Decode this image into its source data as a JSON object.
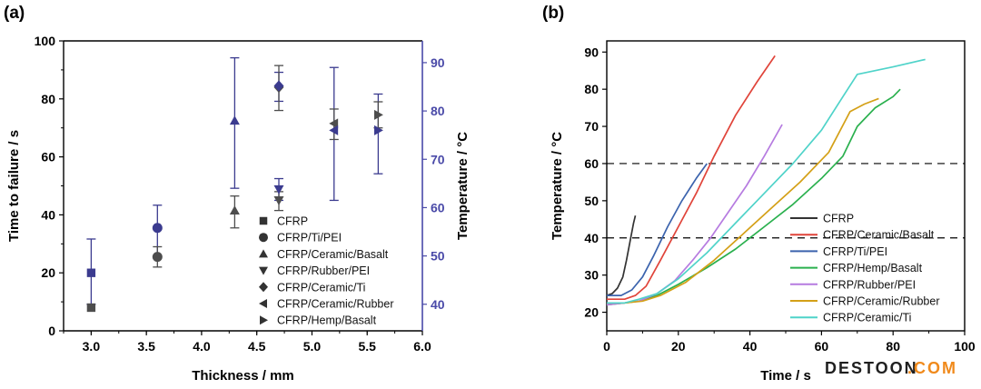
{
  "chart_data": [
    {
      "panel": "(a)",
      "type": "scatter",
      "xlabel": "Thickness / mm",
      "ylabel": "Time to failure / s",
      "y2label": "Temperature / °C",
      "xlim": [
        2.75,
        6.0
      ],
      "ylim": [
        0,
        100
      ],
      "y2lim": [
        34.5,
        94.5
      ],
      "xticks": [
        "3.0",
        "3.5",
        "4.0",
        "4.5",
        "5.0",
        "5.5",
        "6.0"
      ],
      "yticks": [
        "0",
        "20",
        "40",
        "60",
        "80",
        "100"
      ],
      "y2ticks": [
        "40",
        "50",
        "60",
        "70",
        "80",
        "90"
      ],
      "colors": {
        "time": "#4d4d4d",
        "temperature": "#3b3b8f",
        "y2axis": "#4a4aa8"
      },
      "legend_position": "bottom-right",
      "series": [
        {
          "name": "CFRP",
          "marker": "square",
          "x": 3.0,
          "time": 8,
          "time_err": null,
          "temp": 46.5,
          "temp_err": [
            40,
            53.5
          ]
        },
        {
          "name": "CFRP/Ti/PEI",
          "marker": "circle",
          "x": 3.6,
          "time": 25.5,
          "time_err": [
            22,
            29
          ],
          "temp": 55.8,
          "temp_err": [
            49.5,
            60.5
          ]
        },
        {
          "name": "CFRP/Ceramic/Basalt",
          "marker": "triangle-up",
          "x": 4.3,
          "time": 41.5,
          "time_err": [
            35.5,
            46.5
          ],
          "temp": 78,
          "temp_err": [
            64,
            91
          ]
        },
        {
          "name": "CFRP/Rubber/PEI",
          "marker": "triangle-down",
          "x": 4.7,
          "time": 45,
          "time_err": [
            41.5,
            48
          ],
          "temp": 63.8,
          "temp_err": [
            61.5,
            66
          ]
        },
        {
          "name": "CFRP/Ceramic/Ti",
          "marker": "diamond",
          "x": 4.7,
          "time": 84,
          "time_err": [
            76,
            91.5
          ],
          "temp": 85.2,
          "temp_err": [
            82,
            88
          ]
        },
        {
          "name": "CFRP/Ceramic/Rubber",
          "marker": "triangle-left",
          "x": 5.2,
          "time": 71.5,
          "time_err": [
            66,
            76.5
          ],
          "temp": 76,
          "temp_err": [
            61.5,
            89
          ]
        },
        {
          "name": "CFRP/Hemp/Basalt",
          "marker": "triangle-right",
          "x": 5.6,
          "time": 74.5,
          "time_err": [
            70,
            79
          ],
          "temp": 76,
          "temp_err": [
            67,
            83.5
          ]
        }
      ]
    },
    {
      "panel": "(b)",
      "type": "line",
      "xlabel": "Time / s",
      "ylabel": "Temperature / °C",
      "xlim": [
        0,
        100
      ],
      "ylim": [
        15,
        93
      ],
      "xticks": [
        "0",
        "20",
        "40",
        "60",
        "80",
        "100"
      ],
      "yticks": [
        "20",
        "30",
        "40",
        "50",
        "60",
        "70",
        "80",
        "90"
      ],
      "hlines": [
        40,
        60
      ],
      "legend_position": "lower-right",
      "series": [
        {
          "name": "CFRP",
          "color": "#333333",
          "x": [
            0,
            1.5,
            3,
            4.5,
            5.5,
            6.5,
            7.5,
            8
          ],
          "y": [
            24.5,
            25,
            26.5,
            29.5,
            34,
            39,
            44,
            46
          ]
        },
        {
          "name": "CFRP/Ceramic/Basalt",
          "color": "#e0443a",
          "x": [
            0,
            5,
            8,
            11,
            15,
            20,
            25,
            30,
            36,
            42,
            47
          ],
          "y": [
            23.5,
            23.5,
            24.5,
            27,
            34,
            43,
            52,
            62,
            73,
            82,
            89
          ]
        },
        {
          "name": "CFRP/Ti/PEI",
          "color": "#3b63ad",
          "x": [
            0,
            4,
            7,
            10,
            13,
            17,
            21,
            25,
            28
          ],
          "y": [
            24.5,
            24.5,
            26,
            29.5,
            35,
            43,
            50,
            56,
            60
          ]
        },
        {
          "name": "CFRP/Hemp/Basalt",
          "color": "#2ab04e",
          "x": [
            0,
            5,
            9,
            14,
            20,
            28,
            36,
            44,
            52,
            60,
            66,
            70,
            75,
            80,
            82
          ],
          "y": [
            22,
            22.5,
            23,
            24.5,
            27.5,
            32,
            37,
            43,
            49,
            56,
            62,
            70,
            75,
            78,
            80
          ]
        },
        {
          "name": "CFRP/Rubber/PEI",
          "color": "#b67be0",
          "x": [
            0,
            5,
            9,
            14,
            19,
            24,
            29,
            34,
            39,
            44,
            49
          ],
          "y": [
            22,
            22.5,
            23,
            25,
            28.5,
            34,
            40,
            47,
            54,
            62,
            70.5
          ]
        },
        {
          "name": "CFRP/Ceramic/Rubber",
          "color": "#d4a017",
          "x": [
            0,
            5,
            10,
            15,
            22,
            30,
            38,
            46,
            54,
            62,
            68,
            72,
            76
          ],
          "y": [
            22.5,
            22.5,
            23,
            24.5,
            28,
            34,
            41,
            48,
            55,
            63,
            74,
            76,
            77.5
          ]
        },
        {
          "name": "CFRP/Ceramic/Ti",
          "color": "#4fd3c9",
          "x": [
            0,
            5,
            9,
            14,
            20,
            28,
            36,
            44,
            52,
            60,
            66,
            70,
            80,
            89
          ],
          "y": [
            22.5,
            22.5,
            23.5,
            25,
            29,
            36,
            44,
            52,
            60,
            69,
            78,
            84,
            86,
            88
          ]
        }
      ]
    }
  ],
  "watermark": {
    "text_dark": "DESTOON",
    "text_orange": ".COM",
    "color_dark": "#1f1f1f",
    "color_orange": "#f08a1c"
  }
}
